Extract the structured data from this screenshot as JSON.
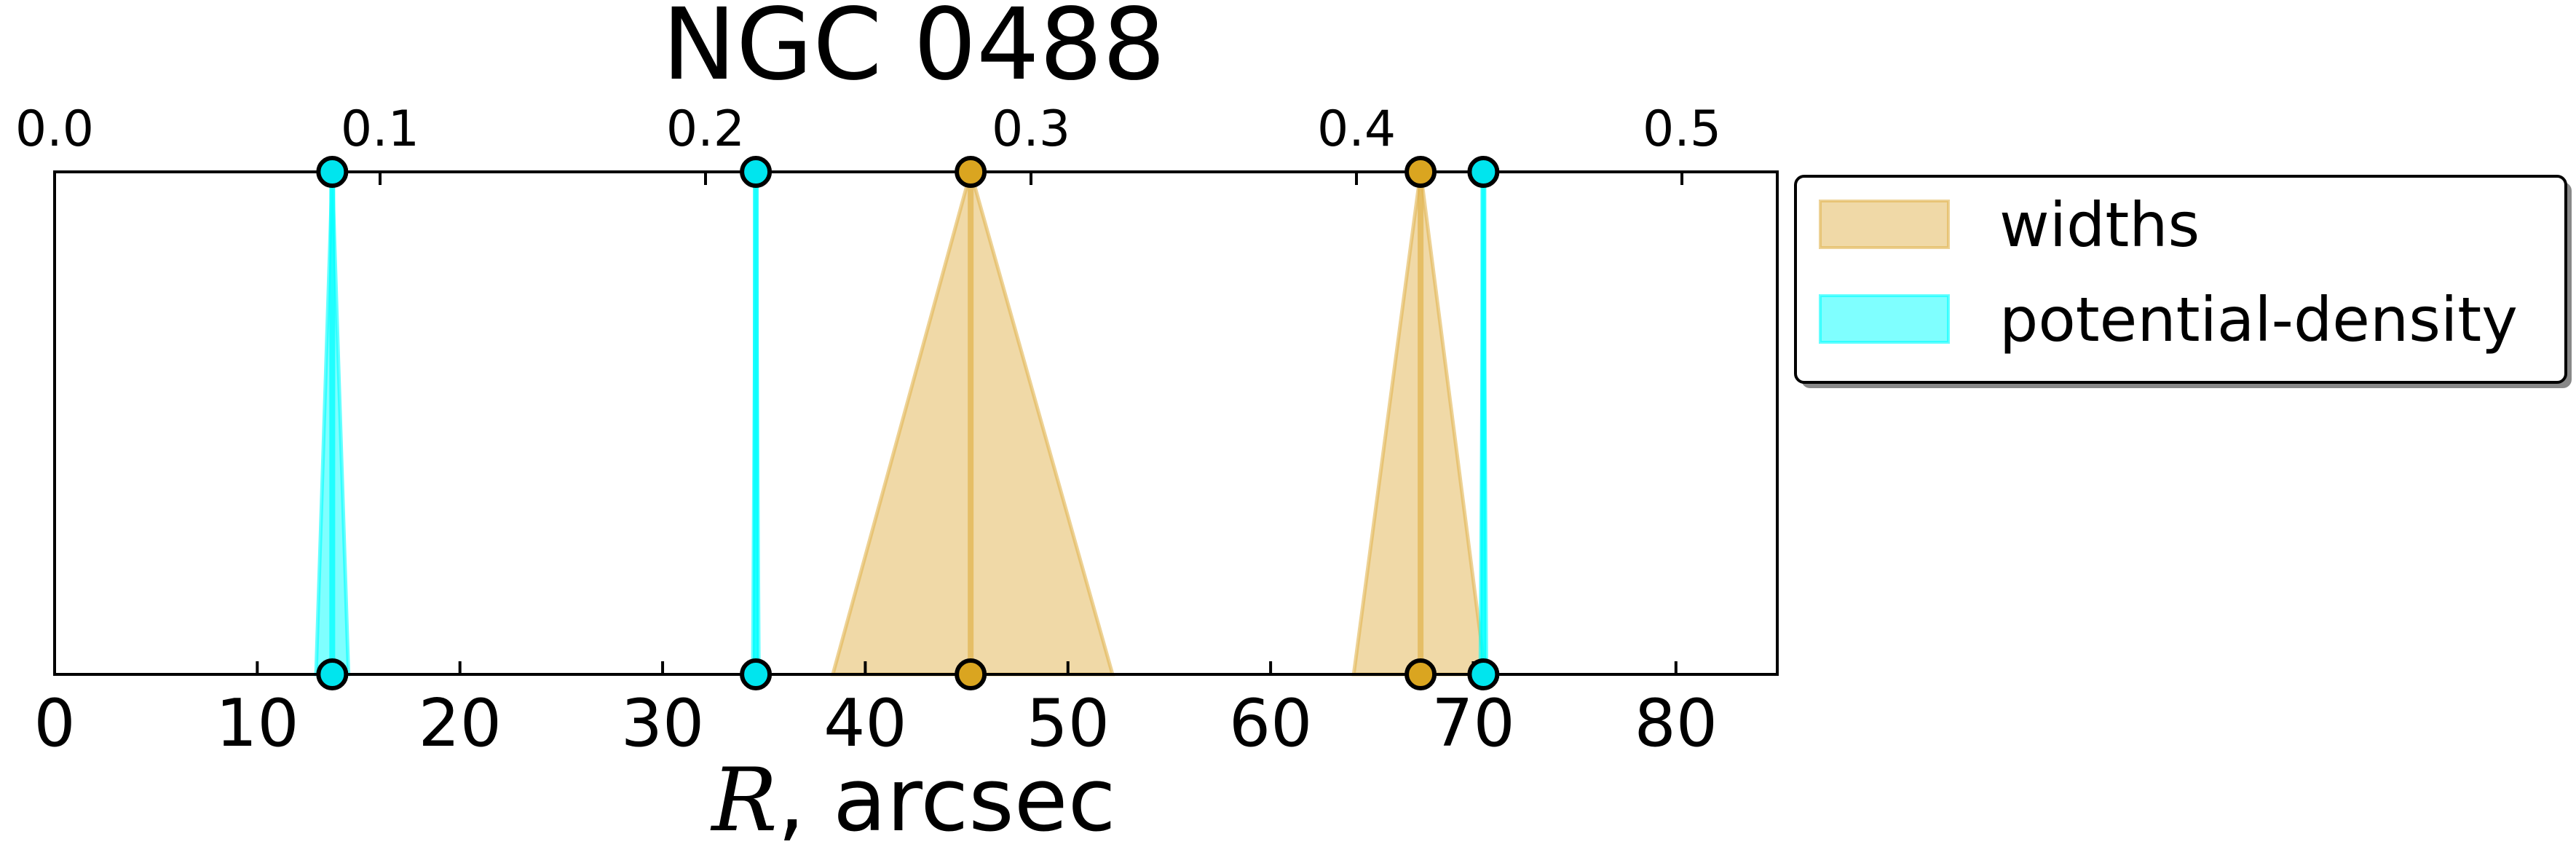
{
  "chart_data": {
    "type": "area",
    "title": "NGC 0488",
    "xlabel_var": "R",
    "xlabel_rest": ", arcsec",
    "xlim": [
      0,
      85
    ],
    "ylim": [
      0,
      1
    ],
    "x_ticks": [
      0,
      10,
      20,
      30,
      40,
      50,
      60,
      70,
      80
    ],
    "x_tick_labels": [
      "0",
      "10",
      "20",
      "30",
      "40",
      "50",
      "60",
      "70",
      "80"
    ],
    "top_axis": {
      "xlim": [
        0,
        0.5293
      ],
      "ticks": [
        0.0,
        0.1,
        0.2,
        0.3,
        0.4,
        0.5
      ],
      "tick_labels": [
        "0.0",
        "0.1",
        "0.2",
        "0.3",
        "0.4",
        "0.5"
      ]
    },
    "grid": false,
    "legend_position": "outside-right-top",
    "series": [
      {
        "name": "widths",
        "color": "#e1b450",
        "marker_color": "#daa520",
        "triangles": [
          {
            "center": 45.2,
            "left": 38.4,
            "right": 52.2
          },
          {
            "center": 67.4,
            "left": 64.1,
            "right": 70.6
          }
        ]
      },
      {
        "name": "potential-density",
        "color": "#00ffff",
        "marker_color": "#00e5ee",
        "triangles": [
          {
            "center": 13.7,
            "left": 12.9,
            "right": 14.5
          },
          {
            "center": 34.6,
            "left": 34.45,
            "right": 34.75
          },
          {
            "center": 70.5,
            "left": 70.35,
            "right": 70.65
          }
        ]
      }
    ]
  }
}
